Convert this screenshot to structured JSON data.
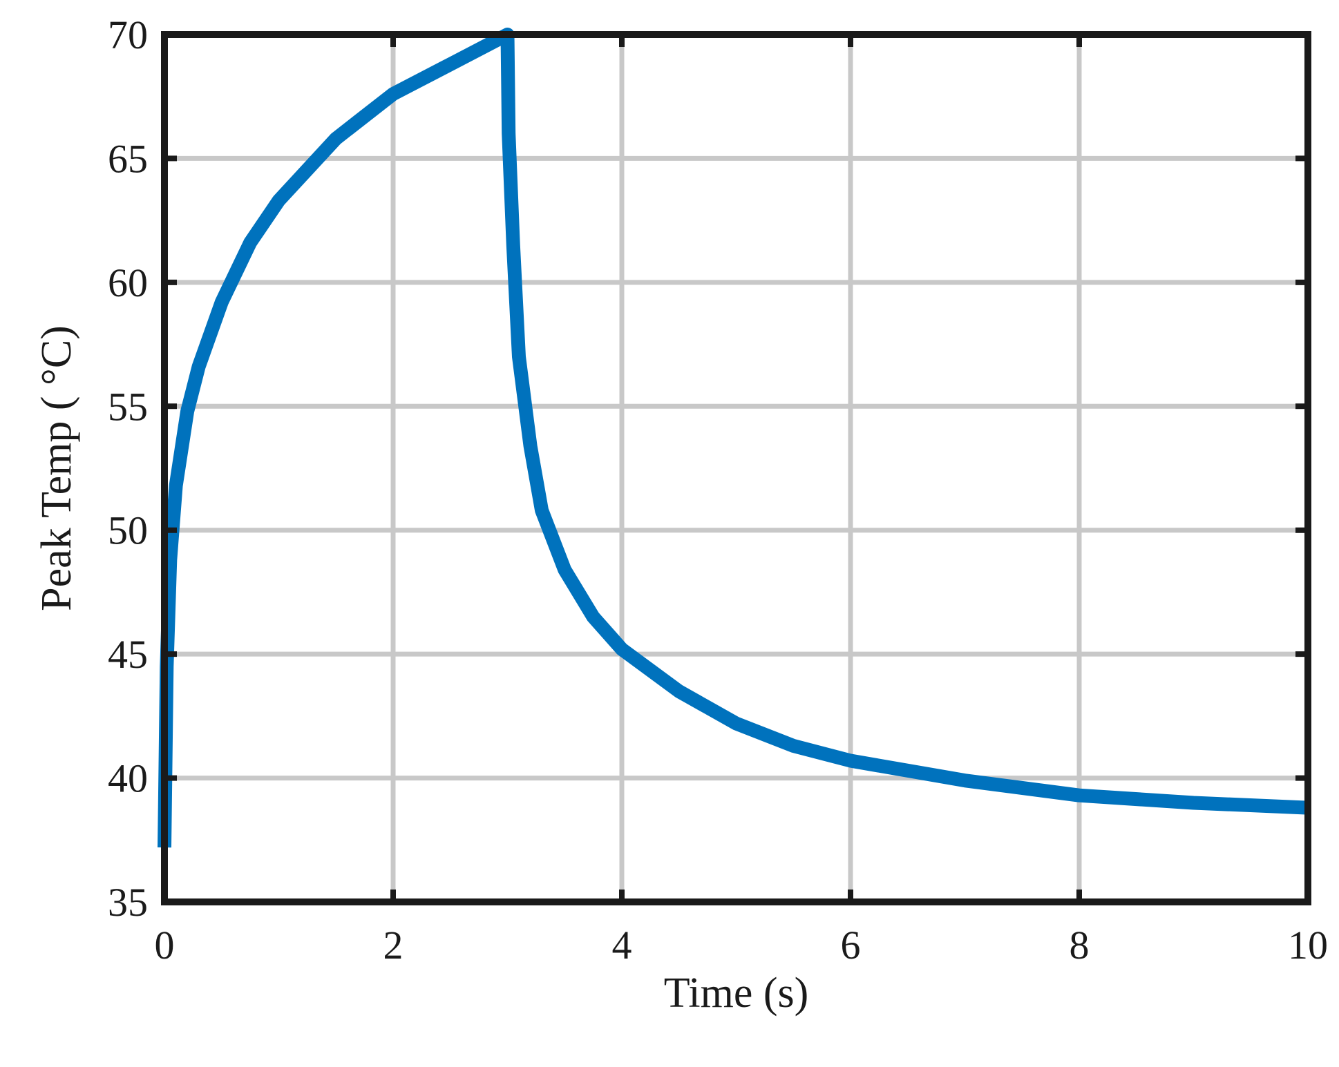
{
  "chart_data": {
    "type": "line",
    "xlabel": "Time (s)",
    "ylabel": "Peak Temp ( °C)",
    "xlim": [
      0,
      10
    ],
    "ylim": [
      35,
      70
    ],
    "xticks": [
      0,
      2,
      4,
      6,
      8,
      10
    ],
    "yticks": [
      35,
      40,
      45,
      50,
      55,
      60,
      65,
      70
    ],
    "xtick_labels": [
      "0",
      "2",
      "4",
      "6",
      "8",
      "10"
    ],
    "ytick_labels": [
      "35",
      "40",
      "45",
      "50",
      "55",
      "60",
      "65",
      "70"
    ],
    "grid": true,
    "series": [
      {
        "color": "#0072bd",
        "x": [
          0.0,
          0.02,
          0.05,
          0.1,
          0.2,
          0.3,
          0.5,
          0.75,
          1.0,
          1.5,
          2.0,
          2.5,
          3.0,
          3.01,
          3.05,
          3.1,
          3.2,
          3.3,
          3.5,
          3.75,
          4.0,
          4.5,
          5.0,
          5.5,
          6.0,
          7.0,
          8.0,
          9.0,
          10.0
        ],
        "y": [
          37.2,
          44.5,
          48.8,
          51.8,
          54.8,
          56.6,
          59.2,
          61.6,
          63.3,
          65.8,
          67.6,
          68.8,
          70.0,
          66.0,
          61.5,
          57.0,
          53.4,
          50.8,
          48.4,
          46.5,
          45.2,
          43.5,
          42.2,
          41.3,
          40.7,
          39.9,
          39.3,
          39.0,
          38.8
        ]
      }
    ]
  }
}
